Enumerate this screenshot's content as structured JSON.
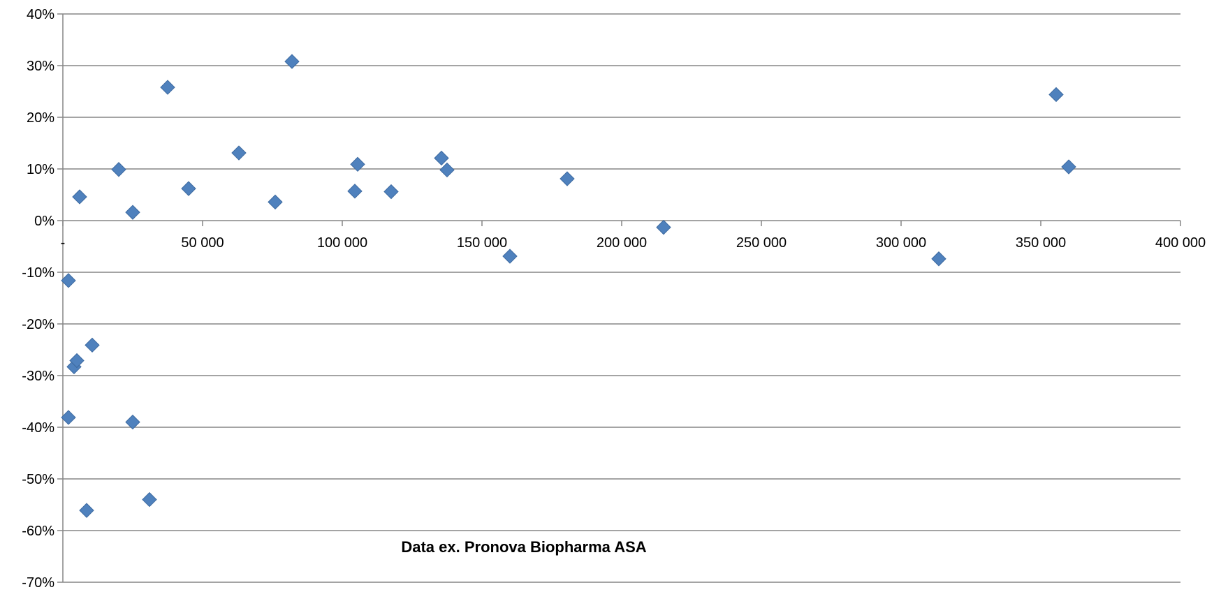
{
  "chart_data": {
    "type": "scatter",
    "title": "",
    "xlabel": "",
    "ylabel": "",
    "xlim": [
      0,
      400000
    ],
    "ylim": [
      -70,
      40
    ],
    "grid": "horizontal",
    "legend": "none",
    "marker": "diamond",
    "color": "#4F81BD",
    "x_ticks": [
      {
        "v": 0,
        "label": "-"
      },
      {
        "v": 50000,
        "label": "50 000"
      },
      {
        "v": 100000,
        "label": "100 000"
      },
      {
        "v": 150000,
        "label": "150 000"
      },
      {
        "v": 200000,
        "label": "200 000"
      },
      {
        "v": 250000,
        "label": "250 000"
      },
      {
        "v": 300000,
        "label": "300 000"
      },
      {
        "v": 350000,
        "label": "350 000"
      },
      {
        "v": 400000,
        "label": "400 000"
      }
    ],
    "y_ticks": [
      {
        "v": 40,
        "label": "40%"
      },
      {
        "v": 30,
        "label": "30%"
      },
      {
        "v": 20,
        "label": "20%"
      },
      {
        "v": 10,
        "label": "10%"
      },
      {
        "v": 0,
        "label": "0%"
      },
      {
        "v": -10,
        "label": "-10%"
      },
      {
        "v": -20,
        "label": "-20%"
      },
      {
        "v": -30,
        "label": "-30%"
      },
      {
        "v": -40,
        "label": "-40%"
      },
      {
        "v": -50,
        "label": "-50%"
      },
      {
        "v": -60,
        "label": "-60%"
      },
      {
        "v": -70,
        "label": "-70%"
      }
    ],
    "annotation": {
      "text": "Data ex. Pronova Biopharma ASA",
      "x": 165000,
      "y": -64.2
    },
    "points": [
      {
        "x": 2000,
        "y": -11.6
      },
      {
        "x": 2000,
        "y": -38.1
      },
      {
        "x": 4000,
        "y": -28.3
      },
      {
        "x": 5000,
        "y": -27.1
      },
      {
        "x": 6000,
        "y": 4.6
      },
      {
        "x": 8500,
        "y": -56.1
      },
      {
        "x": 10500,
        "y": -24.1
      },
      {
        "x": 20000,
        "y": 9.9
      },
      {
        "x": 25000,
        "y": 1.6
      },
      {
        "x": 25000,
        "y": -39.0
      },
      {
        "x": 31000,
        "y": -54.0
      },
      {
        "x": 37500,
        "y": 25.8
      },
      {
        "x": 45000,
        "y": 6.2
      },
      {
        "x": 63000,
        "y": 13.1
      },
      {
        "x": 76000,
        "y": 3.6
      },
      {
        "x": 82000,
        "y": 30.8
      },
      {
        "x": 104500,
        "y": 5.7
      },
      {
        "x": 105500,
        "y": 10.9
      },
      {
        "x": 117500,
        "y": 5.6
      },
      {
        "x": 135500,
        "y": 12.1
      },
      {
        "x": 137500,
        "y": 9.8
      },
      {
        "x": 160000,
        "y": -6.9
      },
      {
        "x": 180500,
        "y": 8.1
      },
      {
        "x": 215000,
        "y": -1.3
      },
      {
        "x": 313500,
        "y": -7.4
      },
      {
        "x": 355500,
        "y": 24.4
      },
      {
        "x": 360000,
        "y": 10.4
      }
    ]
  }
}
